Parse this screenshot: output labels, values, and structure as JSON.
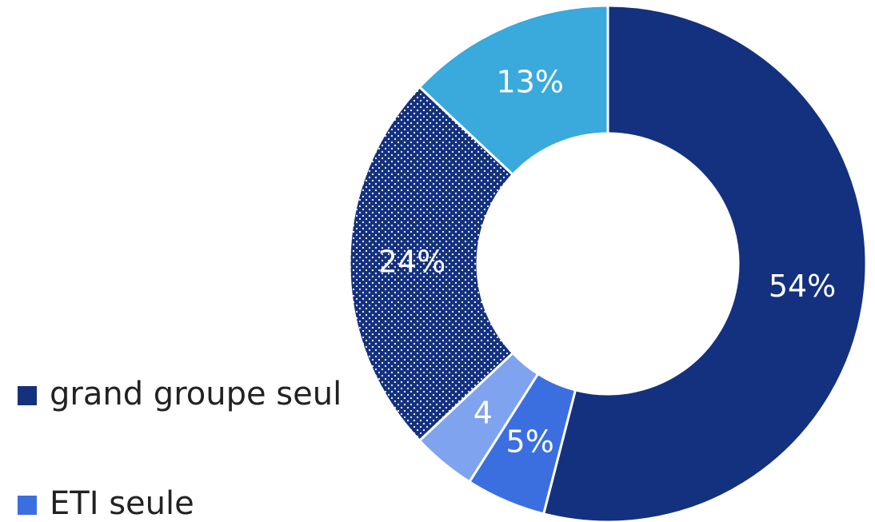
{
  "chart_data": {
    "type": "donut",
    "categories": [
      "grand groupe seul",
      "ETI seule",
      null,
      null,
      null
    ],
    "values": [
      54,
      5,
      4,
      24,
      13
    ],
    "value_labels": [
      "54%",
      "5%",
      "4",
      "24%",
      "13%"
    ],
    "colors": [
      "#14317f",
      "#3b6fe0",
      "#7fa3ef",
      "#14317f",
      "#3aa9dc"
    ],
    "patterns": [
      null,
      null,
      null,
      "dots",
      null
    ],
    "legend": "left"
  }
}
